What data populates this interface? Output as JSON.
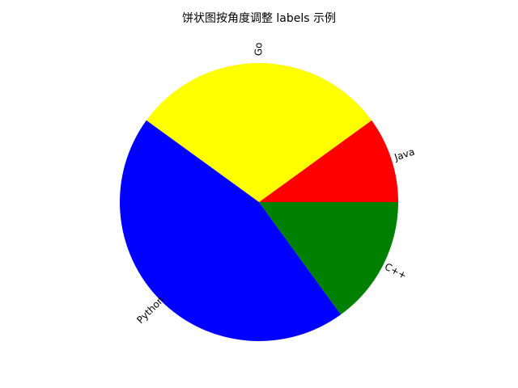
{
  "chart_data": {
    "type": "pie",
    "title": "饼状图按角度调整 labels 示例",
    "categories": [
      "Java",
      "Go",
      "Python",
      "C++"
    ],
    "values": [
      10,
      30,
      45,
      15
    ],
    "colors": [
      "#ff0000",
      "#ffff00",
      "#0000ff",
      "#008000"
    ],
    "start_angle": "0 degrees (3 o'clock), counter-clockwise",
    "label_rotation": "rotated to match slice angle",
    "legend": "none"
  }
}
